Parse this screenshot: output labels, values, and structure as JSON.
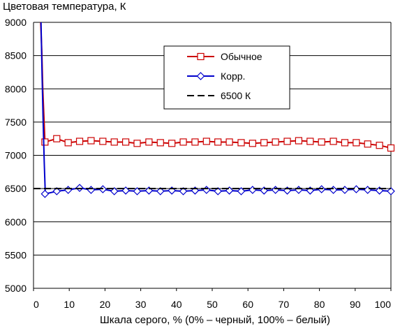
{
  "chart_data": {
    "type": "line",
    "title": "",
    "ylabel": "Цветовая температура, К",
    "xlabel": "Шкала серого, % (0% – черный, 100% – белый)",
    "xlim": [
      0,
      100
    ],
    "ylim": [
      5000,
      9000
    ],
    "xticks": [
      "0",
      "10",
      "20",
      "30",
      "40",
      "50",
      "60",
      "70",
      "80",
      "90",
      "100"
    ],
    "yticks": [
      "5000",
      "5500",
      "6000",
      "6500",
      "7000",
      "7500",
      "8000",
      "8500",
      "9000"
    ],
    "grid": "horizontal",
    "legend_position": "top-center",
    "series": [
      {
        "name": "Обычное",
        "color": "#cc0000",
        "marker": "square",
        "line_style": "solid",
        "steep_x": [
          2.0,
          2.3,
          2.6,
          2.9,
          3.2
        ],
        "steep_y": [
          9000,
          8600,
          8000,
          7600,
          7200
        ],
        "marker_x": [
          3.2,
          6.5,
          9.7,
          12.9,
          16.1,
          19.4,
          22.6,
          25.8,
          29,
          32.3,
          35.5,
          38.7,
          41.9,
          45.2,
          48.4,
          51.6,
          54.8,
          58.1,
          61.3,
          64.5,
          67.7,
          71,
          74.2,
          77.4,
          80.6,
          83.9,
          87.1,
          90.3,
          93.5,
          96.8,
          100
        ],
        "marker_y": [
          7200,
          7250,
          7190,
          7210,
          7220,
          7210,
          7200,
          7200,
          7180,
          7200,
          7190,
          7180,
          7200,
          7200,
          7210,
          7200,
          7200,
          7190,
          7180,
          7190,
          7200,
          7210,
          7220,
          7210,
          7200,
          7210,
          7190,
          7190,
          7170,
          7150,
          7110
        ]
      },
      {
        "name": "Корр.",
        "color": "#0000cc",
        "marker": "diamond",
        "line_style": "solid",
        "steep_x": [
          2.1,
          2.4,
          2.7,
          3.0,
          3.3
        ],
        "steep_y": [
          9000,
          8200,
          7500,
          6900,
          6420
        ],
        "marker_x": [
          3.2,
          6.5,
          9.7,
          12.9,
          16.1,
          19.4,
          22.6,
          25.8,
          29,
          32.3,
          35.5,
          38.7,
          41.9,
          45.2,
          48.4,
          51.6,
          54.8,
          58.1,
          61.3,
          64.5,
          67.7,
          71,
          74.2,
          77.4,
          80.6,
          83.9,
          87.1,
          90.3,
          93.5,
          96.8,
          100
        ],
        "marker_y": [
          6420,
          6460,
          6480,
          6510,
          6480,
          6490,
          6460,
          6470,
          6460,
          6470,
          6460,
          6470,
          6460,
          6470,
          6480,
          6460,
          6470,
          6460,
          6480,
          6470,
          6480,
          6470,
          6480,
          6470,
          6490,
          6480,
          6480,
          6490,
          6480,
          6470,
          6460
        ]
      },
      {
        "name": "6500 К",
        "color": "#000000",
        "marker": "none",
        "line_style": "dashed",
        "x": [
          0,
          100
        ],
        "values": [
          6500,
          6500
        ]
      }
    ]
  }
}
